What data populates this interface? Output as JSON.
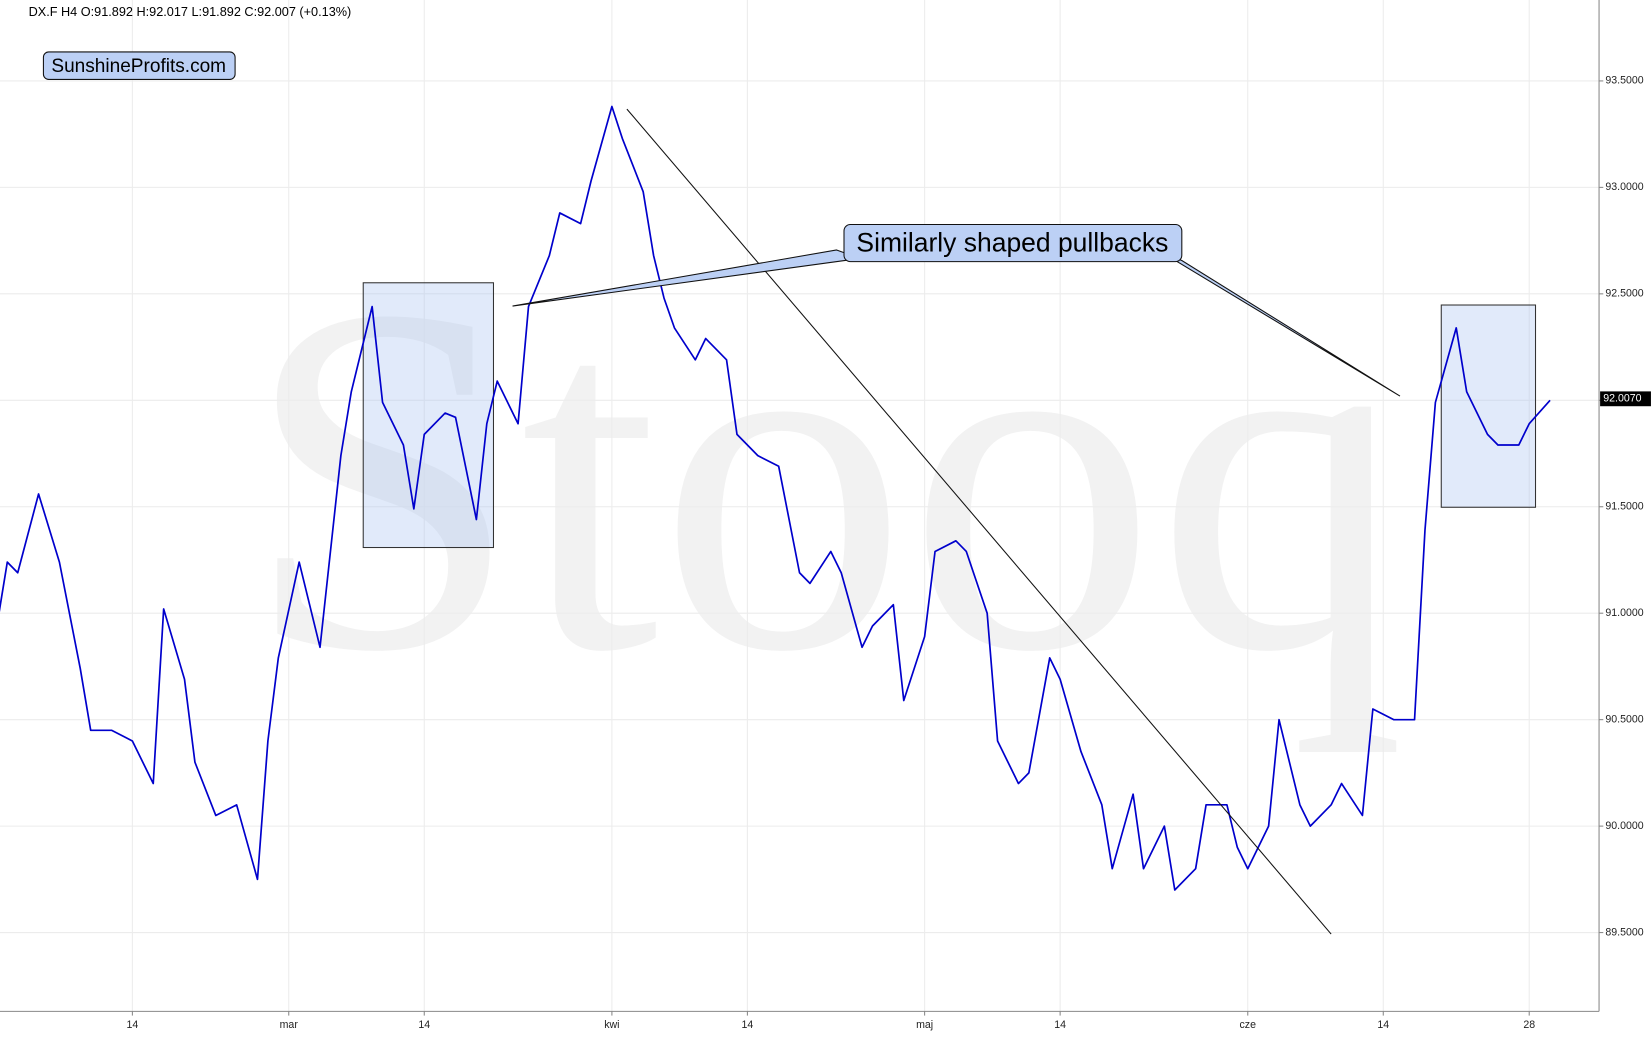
{
  "chart_data": {
    "type": "line",
    "title": "DX.F  H4  O:91.892  H:92.017  L:91.892  C:92.007  (+0.13%)",
    "logo": "SunshineProfits.com",
    "watermark": "Stooq",
    "annotation": "Similarly shaped pullbacks",
    "last_price": {
      "value": 92.007,
      "label": "92.0070"
    },
    "xlim": [
      32.3,
      185.7
    ],
    "ylim": [
      89.13,
      93.88
    ],
    "xticks": [
      {
        "value": 45,
        "label": "14"
      },
      {
        "value": 60,
        "label": "mar"
      },
      {
        "value": 73,
        "label": "14"
      },
      {
        "value": 91,
        "label": "kwi"
      },
      {
        "value": 104,
        "label": "14"
      },
      {
        "value": 121,
        "label": "maj"
      },
      {
        "value": 134,
        "label": "14"
      },
      {
        "value": 152,
        "label": "cze"
      },
      {
        "value": 165,
        "label": "14"
      },
      {
        "value": 179,
        "label": "28"
      }
    ],
    "yticks": [
      {
        "value": 89.5,
        "label": "89.5000"
      },
      {
        "value": 90,
        "label": "90.0000"
      },
      {
        "value": 90.5,
        "label": "90.5000"
      },
      {
        "value": 91,
        "label": "91.0000"
      },
      {
        "value": 91.5,
        "label": "91.5000"
      },
      {
        "value": 92,
        "label": "92.0000"
      },
      {
        "value": 92.5,
        "label": "92.5000"
      },
      {
        "value": 93,
        "label": "93.0000"
      },
      {
        "value": 93.5,
        "label": "93.5000"
      }
    ],
    "grid": true,
    "x": [
      32,
      33,
      34,
      36,
      38,
      40,
      41,
      43,
      45,
      47,
      48,
      50,
      51,
      53,
      55,
      57,
      58,
      59,
      61,
      63,
      65,
      66,
      68,
      69,
      71,
      72,
      73,
      75,
      76,
      78,
      79,
      80,
      82,
      83,
      85,
      86,
      88,
      89,
      91,
      92,
      94,
      95,
      96,
      97,
      99,
      100,
      102,
      103,
      105,
      107,
      109,
      110,
      112,
      113,
      115,
      116,
      118,
      119,
      121,
      122,
      124,
      125,
      127,
      128,
      130,
      131,
      133,
      134,
      136,
      138,
      139,
      141,
      142,
      144,
      145,
      147,
      148,
      150,
      151,
      152,
      154,
      155,
      157,
      158,
      160,
      161,
      163,
      164,
      166,
      168,
      169,
      170,
      172,
      173,
      175,
      176,
      178,
      179,
      181
    ],
    "series": [
      {
        "color": "#0000cc",
        "values": [
          90.94,
          91.24,
          91.19,
          91.56,
          91.24,
          90.74,
          90.45,
          90.45,
          90.4,
          90.2,
          91.02,
          90.69,
          90.3,
          90.05,
          90.1,
          89.75,
          90.4,
          90.79,
          91.24,
          90.84,
          91.74,
          92.04,
          92.44,
          91.99,
          91.79,
          91.49,
          91.84,
          91.94,
          91.92,
          91.44,
          91.89,
          92.09,
          91.89,
          92.44,
          92.68,
          92.88,
          92.83,
          93.03,
          93.38,
          93.23,
          92.98,
          92.68,
          92.48,
          92.34,
          92.19,
          92.29,
          92.19,
          91.84,
          91.74,
          91.69,
          91.19,
          91.14,
          91.29,
          91.19,
          90.84,
          90.94,
          91.04,
          90.59,
          90.89,
          91.29,
          91.34,
          91.29,
          91.0,
          90.4,
          90.2,
          90.25,
          90.79,
          90.69,
          90.35,
          90.1,
          89.8,
          90.15,
          89.8,
          90.0,
          89.7,
          89.8,
          90.1,
          90.1,
          89.9,
          89.8,
          90.0,
          90.5,
          90.1,
          90.0,
          90.1,
          90.2,
          90.05,
          90.55,
          90.5,
          90.5,
          91.39,
          91.99,
          92.34,
          92.04,
          91.84,
          91.79,
          91.79,
          91.89,
          92.0
        ]
      }
    ]
  }
}
